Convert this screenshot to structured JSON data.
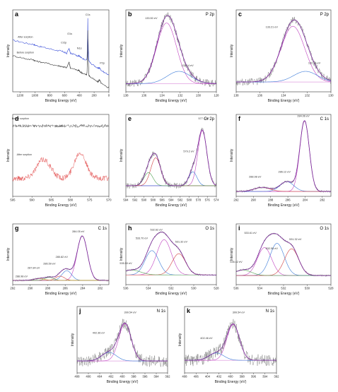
{
  "chart_data": [
    {
      "id": "a",
      "type": "line",
      "panel_label": "a",
      "title": "",
      "xlabel": "Binding Energy (eV)",
      "ylabel": "Intensity",
      "xlim": [
        1300,
        0
      ],
      "ylim": [
        0,
        10
      ],
      "xticks": [
        "1200",
        "1000",
        "800",
        "600",
        "400",
        "200",
        "0"
      ],
      "series": [
        {
          "name": "After sorption",
          "color": "#3a4fd8",
          "x": [
            1300,
            1200,
            1100,
            1020,
            1000,
            960,
            900,
            800,
            700,
            660,
            620,
            600,
            570,
            540,
            530,
            520,
            450,
            420,
            405,
            400,
            380,
            350,
            300,
            295,
            288,
            285,
            283,
            270,
            250,
            200,
            150,
            140,
            130,
            120,
            100,
            50,
            0
          ],
          "y": [
            6.3,
            6.1,
            5.9,
            5.8,
            5.7,
            5.6,
            5.45,
            5.25,
            5.05,
            5.0,
            4.9,
            4.8,
            4.7,
            5.3,
            5.0,
            4.7,
            4.5,
            4.4,
            4.45,
            4.35,
            4.2,
            4.05,
            3.9,
            4.2,
            6.8,
            9.0,
            6.5,
            3.8,
            3.5,
            3.2,
            2.9,
            2.9,
            2.95,
            2.85,
            2.6,
            2.3,
            2.1
          ]
        },
        {
          "name": "Before sorption",
          "color": "#333333",
          "x": [
            1300,
            1200,
            1100,
            1020,
            1000,
            960,
            900,
            800,
            700,
            660,
            620,
            600,
            570,
            540,
            530,
            520,
            450,
            420,
            405,
            400,
            380,
            350,
            300,
            295,
            288,
            285,
            283,
            270,
            250,
            200,
            150,
            140,
            130,
            120,
            100,
            50,
            0
          ],
          "y": [
            4.4,
            4.2,
            4.0,
            3.9,
            3.8,
            3.7,
            3.6,
            3.4,
            3.2,
            3.15,
            3.05,
            3.0,
            2.95,
            3.6,
            3.3,
            2.9,
            2.7,
            2.6,
            2.65,
            2.55,
            2.4,
            2.25,
            2.1,
            2.4,
            5.0,
            7.5,
            4.8,
            2.0,
            1.8,
            1.5,
            1.2,
            1.3,
            1.5,
            1.3,
            1.0,
            0.7,
            0.5
          ]
        }
      ],
      "annotations": [
        {
          "text": "After sorption",
          "x": 1130,
          "y": 6.6
        },
        {
          "text": "Before sorption",
          "x": 1130,
          "y": 4.7
        },
        {
          "text": "Cr2p",
          "x": 610,
          "y": 5.9
        },
        {
          "text": "O1s",
          "x": 530,
          "y": 7.0
        },
        {
          "text": "N1s",
          "x": 400,
          "y": 5.2
        },
        {
          "text": "C1s",
          "x": 285,
          "y": 9.3
        },
        {
          "text": "P2p",
          "x": 90,
          "y": 3.4
        }
      ]
    },
    {
      "id": "b",
      "type": "line",
      "panel_label": "b",
      "title": "P 2p",
      "xlabel": "Binding Energy (eV)",
      "ylabel": "Intensity",
      "xlim": [
        138,
        128
      ],
      "ylim": [
        0,
        10
      ],
      "xticks": [
        "138",
        "136",
        "134",
        "132",
        "130",
        "128"
      ],
      "peaks": [
        {
          "center": 133.5,
          "height": 7.4,
          "width": 1.1,
          "label": "133.50 eV"
        },
        {
          "center": 132.14,
          "height": 1.5,
          "width": 1.3,
          "label": "132.14 eV"
        }
      ],
      "baseline": 1.0,
      "noise": 0.45,
      "annotations": [
        {
          "text": "133.50 eV",
          "x": 135.2,
          "y": 8.9
        },
        {
          "text": "132.14 eV",
          "x": 131.2,
          "y": 3.1
        }
      ]
    },
    {
      "id": "c",
      "type": "line",
      "panel_label": "c",
      "title": "P 2p",
      "xlabel": "Binding Energy (eV)",
      "ylabel": "Intensity",
      "xlim": [
        138,
        130
      ],
      "ylim": [
        0,
        10
      ],
      "xticks": [
        "138",
        "136",
        "134",
        "132",
        "130"
      ],
      "peaks": [
        {
          "center": 133.21,
          "height": 6.8,
          "width": 1.0,
          "label": "133.21 eV"
        },
        {
          "center": 132.14,
          "height": 1.3,
          "width": 1.0,
          "label": "132.14 eV"
        }
      ],
      "baseline": 1.2,
      "noise": 0.45,
      "annotations": [
        {
          "text": "133.21 eV",
          "x": 135.0,
          "y": 7.8
        },
        {
          "text": "132.14 eV",
          "x": 131.4,
          "y": 3.4
        }
      ]
    },
    {
      "id": "d",
      "type": "line",
      "panel_label": "d",
      "title": "",
      "xlabel": "Binding Energy (eV)",
      "ylabel": "Intensity",
      "xlim": [
        595,
        570
      ],
      "ylim": [
        0,
        10
      ],
      "xticks": [
        "595",
        "590",
        "585",
        "580",
        "575",
        "570"
      ],
      "series": [
        {
          "name": "Before sorption",
          "color": "#444444",
          "baseline": 8.6,
          "noise": 0.18,
          "peaks": []
        },
        {
          "name": "After sorption",
          "color": "#e04040",
          "baseline": 2.2,
          "noise": 0.35,
          "peaks": [
            {
              "center": 587,
              "height": 2.3,
              "width": 1.8
            },
            {
              "center": 577.5,
              "height": 3.2,
              "width": 1.5
            }
          ]
        }
      ],
      "annotations": [
        {
          "text": "Before sorption",
          "x": 593,
          "y": 9.4
        },
        {
          "text": "After sorption",
          "x": 592,
          "y": 5.0
        }
      ]
    },
    {
      "id": "e",
      "type": "line",
      "panel_label": "e",
      "title": "Cr 2p",
      "xlabel": "Binding Energy (eV)",
      "ylabel": "Intensity",
      "xlim": [
        594,
        574
      ],
      "ylim": [
        0,
        10
      ],
      "xticks": [
        "594",
        "592",
        "590",
        "588",
        "586",
        "584",
        "582",
        "580",
        "578",
        "576",
        "574"
      ],
      "peaks": [
        {
          "center": 577.1,
          "height": 6.7,
          "width": 1.0,
          "label": "577.1 eV"
        },
        {
          "center": 579.2,
          "height": 1.7,
          "width": 0.9,
          "label": "579.2 eV"
        },
        {
          "center": 587.4,
          "height": 3.4,
          "width": 1.1,
          "label": ""
        },
        {
          "center": 589.0,
          "height": 1.6,
          "width": 1.0,
          "label": ""
        }
      ],
      "baseline": 1.3,
      "noise": 0.35,
      "annotations": [
        {
          "text": "577.1 eV",
          "x": 576.8,
          "y": 9.4
        },
        {
          "text": "579.2 eV",
          "x": 580.1,
          "y": 5.4
        }
      ]
    },
    {
      "id": "f",
      "type": "line",
      "panel_label": "f",
      "title": "C 1s",
      "xlabel": "Binding Energy (eV)",
      "ylabel": "Intensity",
      "xlim": [
        292,
        281
      ],
      "ylim": [
        0,
        10
      ],
      "xticks": [
        "292",
        "290",
        "288",
        "286",
        "284",
        "282"
      ],
      "peaks": [
        {
          "center": 284.06,
          "height": 8.6,
          "width": 0.55,
          "label": "284.06 eV"
        },
        {
          "center": 286.12,
          "height": 1.2,
          "width": 0.8,
          "label": "286.12 eV"
        },
        {
          "center": 288.98,
          "height": 0.5,
          "width": 0.9,
          "label": "288.98 eV"
        }
      ],
      "baseline": 0.6,
      "noise": 0.15,
      "annotations": [
        {
          "text": "284.06 eV",
          "x": 284.2,
          "y": 9.7
        },
        {
          "text": "286.12 eV",
          "x": 286.4,
          "y": 2.9
        },
        {
          "text": "288.98 eV",
          "x": 289.8,
          "y": 2.3
        }
      ]
    },
    {
      "id": "g",
      "type": "line",
      "panel_label": "g",
      "title": "C 1s",
      "xlabel": "Binding Energy (eV)",
      "ylabel": "Intensity",
      "xlim": [
        292,
        281
      ],
      "ylim": [
        0,
        10
      ],
      "xticks": [
        "292",
        "290",
        "288",
        "286",
        "284",
        "282"
      ],
      "peaks": [
        {
          "center": 284.05,
          "height": 7.3,
          "width": 0.6,
          "label": "284.05 eV"
        },
        {
          "center": 285.82,
          "height": 1.6,
          "width": 0.55,
          "label": "285.82 eV"
        },
        {
          "center": 286.59,
          "height": 0.7,
          "width": 0.5,
          "label": "286.59 eV"
        },
        {
          "center": 287.84,
          "height": 0.5,
          "width": 0.5,
          "label": "287.84 eV"
        },
        {
          "center": 288.98,
          "height": 0.3,
          "width": 0.6,
          "label": "288.98 eV"
        }
      ],
      "baseline": 0.7,
      "noise": 0.15,
      "annotations": [
        {
          "text": "284.05 eV",
          "x": 284.5,
          "y": 8.6
        },
        {
          "text": "285.82 eV",
          "x": 286.4,
          "y": 4.4
        },
        {
          "text": "286.59 eV",
          "x": 287.8,
          "y": 3.3
        },
        {
          "text": "287.84 eV",
          "x": 289.6,
          "y": 2.6
        },
        {
          "text": "288.98 eV",
          "x": 291.0,
          "y": 1.2
        }
      ]
    },
    {
      "id": "h",
      "type": "line",
      "panel_label": "h",
      "title": "O 1s",
      "xlabel": "Binding Energy (eV)",
      "ylabel": "Intensity",
      "xlim": [
        536,
        528
      ],
      "ylim": [
        0,
        10
      ],
      "xticks": [
        "536",
        "534",
        "532",
        "530",
        "528"
      ],
      "peaks": [
        {
          "center": 532.62,
          "height": 5.8,
          "width": 0.65,
          "label": "532.62 eV"
        },
        {
          "center": 533.7,
          "height": 4.0,
          "width": 0.6,
          "label": "533.70 eV"
        },
        {
          "center": 531.32,
          "height": 3.5,
          "width": 0.6,
          "label": "531.32 eV"
        },
        {
          "center": 535.5,
          "height": 0.8,
          "width": 0.8,
          "label": "535.50 eV"
        }
      ],
      "baseline": 1.6,
      "noise": 0.15,
      "annotations": [
        {
          "text": "532.62 eV",
          "x": 533.3,
          "y": 8.9
        },
        {
          "text": "533.70 eV",
          "x": 534.6,
          "y": 7.5
        },
        {
          "text": "531.32 eV",
          "x": 531.1,
          "y": 6.9
        },
        {
          "text": "535.50 eV",
          "x": 536.0,
          "y": 3.4
        }
      ]
    },
    {
      "id": "i",
      "type": "line",
      "panel_label": "i",
      "title": "O 1s",
      "xlabel": "Binding Energy (eV)",
      "ylabel": "Intensity",
      "xlim": [
        536,
        528
      ],
      "ylim": [
        0,
        10
      ],
      "xticks": [
        "536",
        "534",
        "532",
        "530",
        "528"
      ],
      "peaks": [
        {
          "center": 533.61,
          "height": 4.6,
          "width": 0.6,
          "label": "533.61 eV"
        },
        {
          "center": 532.55,
          "height": 5.3,
          "width": 0.6,
          "label": "532.55 eV"
        },
        {
          "center": 531.32,
          "height": 4.4,
          "width": 0.6,
          "label": "531.32 eV"
        },
        {
          "center": 535.42,
          "height": 0.9,
          "width": 0.7,
          "label": "535.42 eV"
        }
      ],
      "baseline": 1.5,
      "noise": 0.15,
      "annotations": [
        {
          "text": "533.61 eV",
          "x": 534.8,
          "y": 8.4
        },
        {
          "text": "532.55 eV",
          "x": 533.0,
          "y": 5.8
        },
        {
          "text": "531.32 eV",
          "x": 531.0,
          "y": 7.3
        },
        {
          "text": "535.42 eV",
          "x": 536.0,
          "y": 3.6
        }
      ]
    },
    {
      "id": "j",
      "type": "line",
      "panel_label": "j",
      "title": "N 1s",
      "xlabel": "Binding Energy (eV)",
      "ylabel": "Intensity",
      "xlim": [
        408,
        392
      ],
      "ylim": [
        0,
        10
      ],
      "xticks": [
        "408",
        "406",
        "404",
        "402",
        "400",
        "398",
        "396",
        "394",
        "392"
      ],
      "peaks": [
        {
          "center": 399.54,
          "height": 5.6,
          "width": 1.1,
          "label": "399.54 eV"
        },
        {
          "center": 402.36,
          "height": 1.3,
          "width": 1.3,
          "label": "402.36 eV"
        }
      ],
      "baseline": 1.8,
      "noise": 0.9,
      "annotations": [
        {
          "text": "399.54 eV",
          "x": 398.6,
          "y": 9.0
        },
        {
          "text": "402.36 eV",
          "x": 404.2,
          "y": 5.9
        }
      ]
    },
    {
      "id": "k",
      "type": "line",
      "panel_label": "k",
      "title": "N 1s",
      "xlabel": "Binding Energy (eV)",
      "ylabel": "Intensity",
      "xlim": [
        408,
        392
      ],
      "ylim": [
        0,
        10
      ],
      "xticks": [
        "408",
        "406",
        "404",
        "402",
        "400",
        "398",
        "396",
        "394",
        "392"
      ],
      "peaks": [
        {
          "center": 399.54,
          "height": 5.4,
          "width": 1.1,
          "label": "399.54 eV"
        },
        {
          "center": 402.46,
          "height": 1.1,
          "width": 1.3,
          "label": "402.46 eV"
        }
      ],
      "baseline": 1.9,
      "noise": 0.9,
      "annotations": [
        {
          "text": "399.54 eV",
          "x": 398.6,
          "y": 9.0
        },
        {
          "text": "402.46 eV",
          "x": 404.2,
          "y": 5.1
        }
      ]
    }
  ]
}
